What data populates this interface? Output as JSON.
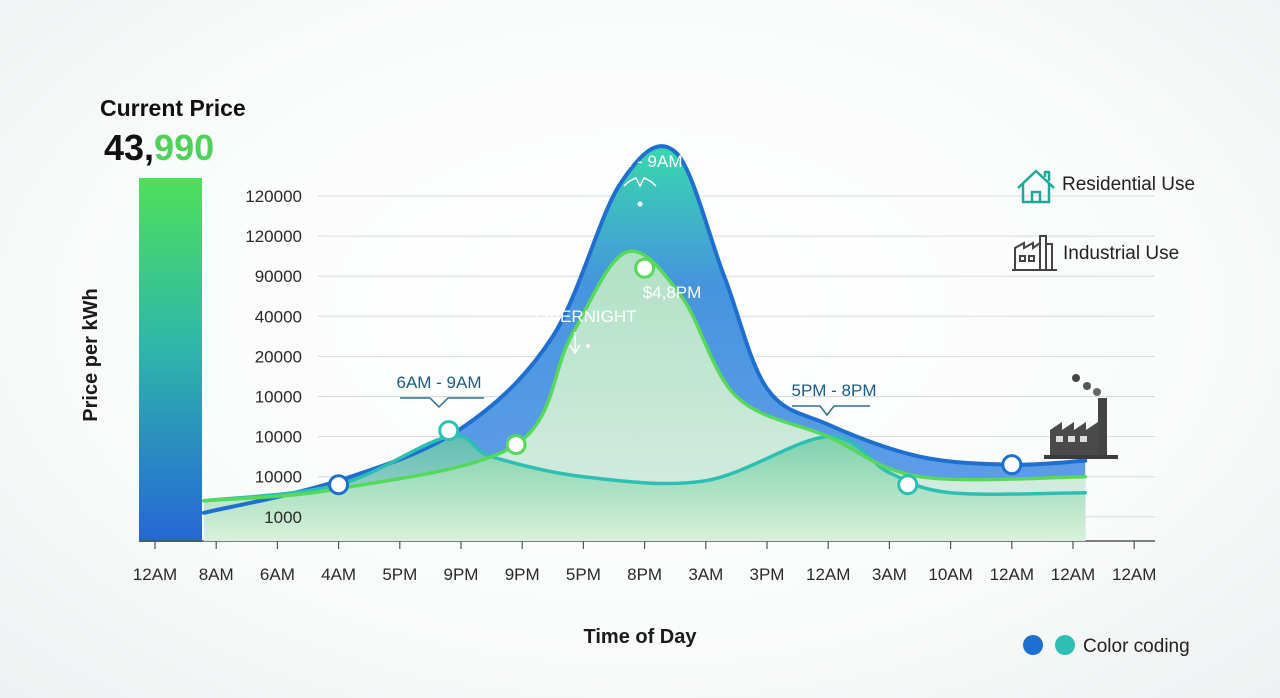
{
  "current_price": {
    "title": "Current Price",
    "value_main": "43,",
    "value_accent": "990",
    "accent_color": "#4fd15a"
  },
  "legend": {
    "residential": {
      "label": "Residential Use",
      "icon": "house-icon",
      "color": "#1fa89a"
    },
    "industrial": {
      "label": "Industrial Use",
      "icon": "factory-icon",
      "color": "#444"
    },
    "color_coding": {
      "label": "Color coding",
      "colors": [
        "#1f6fd1",
        "#2dbfb3"
      ]
    }
  },
  "chart_data": {
    "type": "area",
    "title": "",
    "xlabel": "Time of Day",
    "ylabel": "Price per kWh",
    "y_tick_labels": [
      "1000",
      "10000",
      "10000",
      "10000",
      "20000",
      "40000",
      "90000",
      "120000",
      "120000"
    ],
    "x_tick_labels": [
      "12AM",
      "8AM",
      "6AM",
      "4AM",
      "5PM",
      "9PM",
      "9PM",
      "5PM",
      "8PM",
      "3AM",
      "3PM",
      "12AM",
      "3AM",
      "10AM",
      "12AM",
      "12AM",
      "12AM"
    ],
    "grid": true,
    "note": "y values below are positions on the category tick scale (0 = 1000, 8 = top 120000), x in category index units",
    "series": [
      {
        "name": "",
        "color": "#1f6fd1",
        "points": [
          [
            0.8,
            0.1
          ],
          [
            3,
            0.9
          ],
          [
            5,
            2.2
          ],
          [
            6.5,
            4.5
          ],
          [
            7.6,
            8.3
          ],
          [
            8.5,
            9.1
          ],
          [
            9.3,
            6
          ],
          [
            10,
            3.2
          ],
          [
            11,
            2.3
          ],
          [
            12.5,
            1.5
          ],
          [
            14,
            1.3
          ],
          [
            15.2,
            1.4
          ]
        ],
        "markers": [
          [
            3,
            0.8
          ],
          [
            14,
            1.3
          ]
        ]
      },
      {
        "name": "",
        "color": "#2dbfb3",
        "points": [
          [
            0.8,
            0.4
          ],
          [
            3,
            0.8
          ],
          [
            4.8,
            2
          ],
          [
            5.5,
            1.5
          ],
          [
            7,
            1
          ],
          [
            9,
            0.9
          ],
          [
            11,
            2
          ],
          [
            12,
            1.1
          ],
          [
            13,
            0.6
          ],
          [
            15.2,
            0.6
          ]
        ],
        "markers": [
          [
            4.8,
            2.15
          ],
          [
            12.3,
            0.8
          ]
        ]
      },
      {
        "name": "",
        "color": "#56d85a",
        "points": [
          [
            0.8,
            0.4
          ],
          [
            3,
            0.7
          ],
          [
            5.9,
            1.8
          ],
          [
            6.8,
            4.5
          ],
          [
            7.7,
            6.6
          ],
          [
            8.6,
            5.5
          ],
          [
            9.5,
            3
          ],
          [
            11,
            2
          ],
          [
            12.5,
            1
          ],
          [
            15.2,
            1
          ]
        ],
        "markers": [
          [
            5.9,
            1.8
          ],
          [
            8,
            6.2
          ]
        ]
      }
    ],
    "annotations": [
      {
        "text": "6AM - 9AM",
        "color": "#1b5d86"
      },
      {
        "text": "5PM - 8PM",
        "color": "#1b5d86"
      },
      {
        "text": "6AM - 9AM",
        "color": "#ffffff"
      },
      {
        "text": "$4,8PM",
        "color": "#ffffff"
      },
      {
        "text": "OVERNIGHT",
        "color": "#ffffff"
      }
    ]
  }
}
